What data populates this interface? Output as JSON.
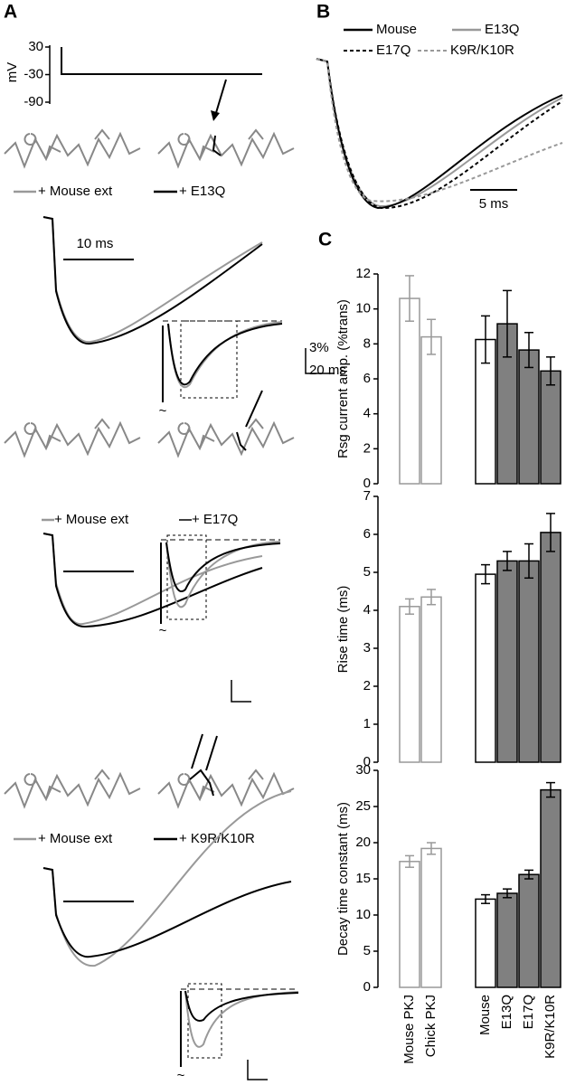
{
  "panel_a": {
    "label": "A",
    "protocol": {
      "ylabel": "mV",
      "ylim": [
        30,
        -90
      ],
      "yticks": [
        30,
        -30,
        -90
      ]
    },
    "rows": [
      {
        "legend": [
          "+ Mouse ext",
          "+ E13Q"
        ],
        "scale": "10 ms",
        "inset_scale": [
          "3%",
          "20 ms"
        ],
        "break_mark": "~"
      },
      {
        "legend": [
          "+ Mouse ext",
          "+ E17Q"
        ],
        "break_mark": "~"
      },
      {
        "legend": [
          "+ Mouse ext",
          "+ K9R/K10R"
        ],
        "break_mark": "~"
      }
    ]
  },
  "panel_b": {
    "label": "B",
    "legend": [
      "Mouse",
      "E13Q",
      "E17Q",
      "K9R/K10R"
    ],
    "scale": "5 ms"
  },
  "panel_c": {
    "label": "C"
  },
  "chart_data": [
    {
      "type": "bar",
      "ylabel": "Rsg current amp. (%trans)",
      "ylim": [
        0,
        12
      ],
      "yticks": [
        0,
        2,
        4,
        6,
        8,
        10,
        12
      ],
      "values": [
        10.6,
        8.4,
        8.25,
        9.15,
        7.65,
        6.45
      ],
      "errors": [
        1.3,
        1.0,
        1.35,
        1.9,
        1.0,
        0.8
      ],
      "fill_colors": [
        "#ffffff",
        "#ffffff",
        "#ffffff",
        "#808080",
        "#808080",
        "#808080"
      ],
      "edge_colors": [
        "#999999",
        "#999999",
        "#000000",
        "#000000",
        "#000000",
        "#000000"
      ]
    },
    {
      "type": "bar",
      "ylabel": "Rise time (ms)",
      "ylim": [
        0,
        7
      ],
      "yticks": [
        0,
        1,
        2,
        3,
        4,
        5,
        6,
        7
      ],
      "values": [
        4.1,
        4.35,
        4.95,
        5.3,
        5.3,
        6.05
      ],
      "errors": [
        0.2,
        0.2,
        0.25,
        0.25,
        0.45,
        0.5
      ],
      "fill_colors": [
        "#ffffff",
        "#ffffff",
        "#ffffff",
        "#808080",
        "#808080",
        "#808080"
      ],
      "edge_colors": [
        "#999999",
        "#999999",
        "#000000",
        "#000000",
        "#000000",
        "#000000"
      ]
    },
    {
      "type": "bar",
      "ylabel": "Decay time constant (ms)",
      "ylim": [
        0,
        30
      ],
      "yticks": [
        0,
        5,
        10,
        15,
        20,
        25,
        30
      ],
      "categories": [
        "Mouse PKJ",
        "Chick PKJ",
        "Mouse",
        "E13Q",
        "E17Q",
        "K9R/K10R"
      ],
      "values": [
        17.4,
        19.2,
        12.2,
        13.0,
        15.6,
        27.3
      ],
      "errors": [
        0.8,
        0.8,
        0.6,
        0.6,
        0.6,
        1.0
      ],
      "fill_colors": [
        "#ffffff",
        "#ffffff",
        "#ffffff",
        "#808080",
        "#808080",
        "#808080"
      ],
      "edge_colors": [
        "#999999",
        "#999999",
        "#000000",
        "#000000",
        "#000000",
        "#000000"
      ]
    }
  ]
}
